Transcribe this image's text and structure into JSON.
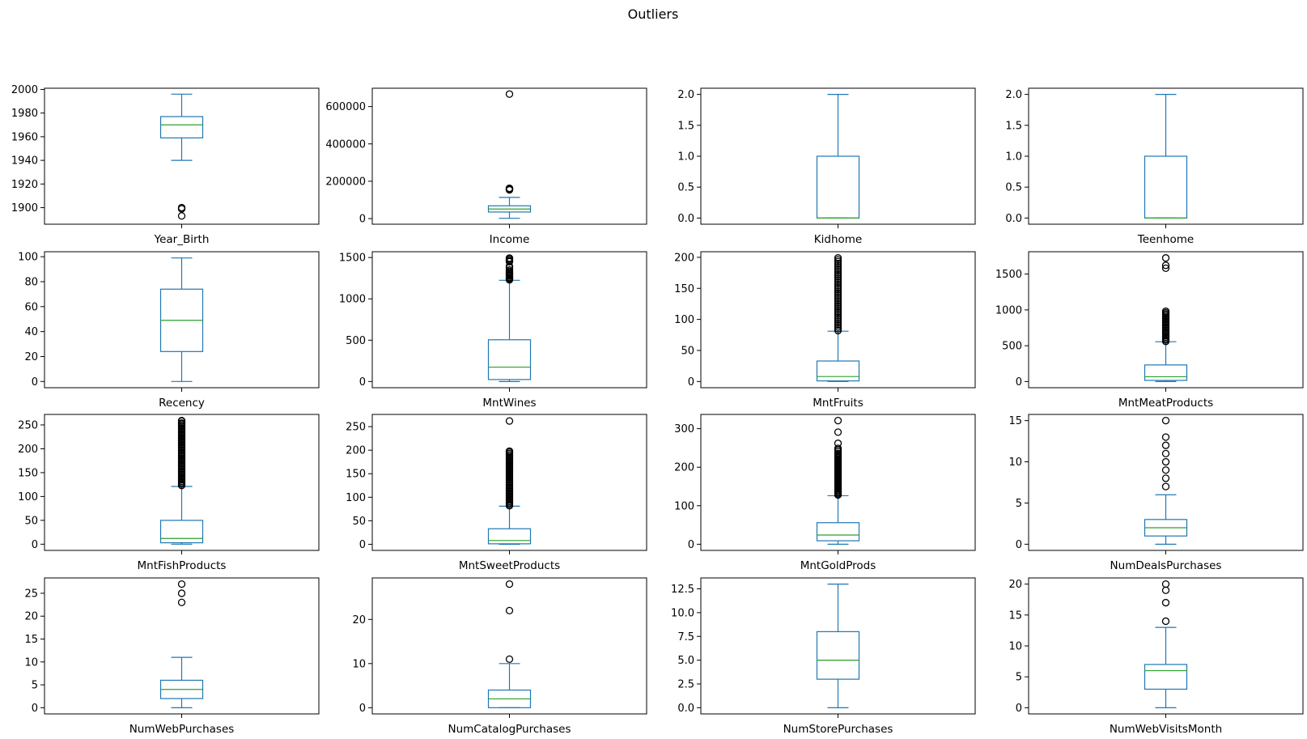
{
  "figure": {
    "title": "Outliers"
  },
  "style": {
    "box_color": "#1f77b4",
    "median_color": "#2ca02c",
    "flier_color": "#000000",
    "frame_color": "#000000"
  },
  "chart_data": [
    {
      "type": "box",
      "label": "Year_Birth",
      "ylim": [
        1886,
        2001
      ],
      "yticks": [
        1900,
        1920,
        1940,
        1960,
        1980,
        2000
      ],
      "tick_labels": [
        "1900",
        "1920",
        "1940",
        "1960",
        "1980",
        "2000"
      ],
      "whisker_low": 1940,
      "q1": 1959,
      "median": 1970,
      "q3": 1977,
      "whisker_high": 1996,
      "outliers": [
        1893,
        1899,
        1900
      ]
    },
    {
      "type": "box",
      "label": "Income",
      "ylim": [
        -30000,
        698000
      ],
      "yticks": [
        0,
        200000,
        400000,
        600000
      ],
      "tick_labels": [
        "0",
        "200000",
        "400000",
        "600000"
      ],
      "whisker_low": 1730,
      "q1": 35300,
      "median": 51400,
      "q3": 68500,
      "whisker_high": 113700,
      "outliers": [
        153900,
        156900,
        157100,
        157700,
        160800,
        162400,
        666700
      ]
    },
    {
      "type": "box",
      "label": "Kidhome",
      "ylim": [
        -0.1,
        2.1
      ],
      "yticks": [
        0.0,
        0.5,
        1.0,
        1.5,
        2.0
      ],
      "tick_labels": [
        "0.0",
        "0.5",
        "1.0",
        "1.5",
        "2.0"
      ],
      "whisker_low": 0,
      "q1": 0,
      "median": 0,
      "q3": 1,
      "whisker_high": 2,
      "outliers": []
    },
    {
      "type": "box",
      "label": "Teenhome",
      "ylim": [
        -0.1,
        2.1
      ],
      "yticks": [
        0.0,
        0.5,
        1.0,
        1.5,
        2.0
      ],
      "tick_labels": [
        "0.0",
        "0.5",
        "1.0",
        "1.5",
        "2.0"
      ],
      "whisker_low": 0,
      "q1": 0,
      "median": 0,
      "q3": 1,
      "whisker_high": 2,
      "outliers": []
    },
    {
      "type": "box",
      "label": "Recency",
      "ylim": [
        -5,
        104
      ],
      "yticks": [
        0,
        20,
        40,
        60,
        80,
        100
      ],
      "tick_labels": [
        "0",
        "20",
        "40",
        "60",
        "80",
        "100"
      ],
      "whisker_low": 0,
      "q1": 24,
      "median": 49,
      "q3": 74,
      "whisker_high": 99,
      "outliers": []
    },
    {
      "type": "box",
      "label": "MntWines",
      "ylim": [
        -75,
        1570
      ],
      "yticks": [
        0,
        500,
        1000,
        1500
      ],
      "tick_labels": [
        "0",
        "500",
        "1000",
        "1500"
      ],
      "whisker_low": 0,
      "q1": 24,
      "median": 174,
      "q3": 505,
      "whisker_high": 1224,
      "outliers": [
        1230,
        1241,
        1245,
        1252,
        1259,
        1276,
        1285,
        1296,
        1308,
        1311,
        1315,
        1332,
        1349,
        1379,
        1394,
        1449,
        1459,
        1462,
        1478,
        1492,
        1493
      ]
    },
    {
      "type": "box",
      "label": "MntFruits",
      "ylim": [
        -10,
        209
      ],
      "yticks": [
        0,
        50,
        100,
        150,
        200
      ],
      "tick_labels": [
        "0",
        "50",
        "100",
        "150",
        "200"
      ],
      "whisker_low": 0,
      "q1": 1,
      "median": 8,
      "q3": 33,
      "whisker_high": 81,
      "outliers": [
        82,
        85,
        88,
        91,
        94,
        97,
        100,
        103,
        106,
        109,
        112,
        115,
        118,
        121,
        124,
        127,
        130,
        133,
        136,
        139,
        142,
        145,
        148,
        151,
        154,
        157,
        160,
        163,
        166,
        169,
        172,
        175,
        178,
        181,
        184,
        187,
        190,
        193,
        196,
        199
      ]
    },
    {
      "type": "box",
      "label": "MntMeatProducts",
      "ylim": [
        -86,
        1812
      ],
      "yticks": [
        0,
        500,
        1000,
        1500
      ],
      "tick_labels": [
        "0",
        "500",
        "1000",
        "1500"
      ],
      "whisker_low": 0,
      "q1": 16,
      "median": 67,
      "q3": 232,
      "whisker_high": 556,
      "outliers": [
        560,
        580,
        600,
        620,
        640,
        660,
        680,
        700,
        720,
        740,
        760,
        780,
        800,
        820,
        840,
        860,
        880,
        900,
        920,
        940,
        960,
        981,
        1582,
        1622,
        1725
      ]
    },
    {
      "type": "box",
      "label": "MntFishProducts",
      "ylim": [
        -13,
        272
      ],
      "yticks": [
        0,
        50,
        100,
        150,
        200,
        250
      ],
      "tick_labels": [
        "0",
        "50",
        "100",
        "150",
        "200",
        "250"
      ],
      "whisker_low": 0,
      "q1": 3,
      "median": 12,
      "q3": 50,
      "whisker_high": 121,
      "outliers": [
        123,
        126,
        129,
        132,
        135,
        138,
        141,
        144,
        147,
        150,
        153,
        156,
        159,
        162,
        165,
        168,
        171,
        174,
        177,
        180,
        183,
        186,
        189,
        192,
        195,
        198,
        201,
        204,
        207,
        210,
        213,
        216,
        219,
        222,
        225,
        228,
        231,
        234,
        237,
        240,
        243,
        246,
        249,
        252,
        254,
        258,
        259
      ]
    },
    {
      "type": "box",
      "label": "MntSweetProducts",
      "ylim": [
        -13,
        276
      ],
      "yticks": [
        0,
        50,
        100,
        150,
        200,
        250
      ],
      "tick_labels": [
        "0",
        "50",
        "100",
        "150",
        "200",
        "250"
      ],
      "whisker_low": 0,
      "q1": 1,
      "median": 8,
      "q3": 33,
      "whisker_high": 81,
      "outliers": [
        82,
        85,
        88,
        91,
        94,
        97,
        100,
        103,
        106,
        109,
        112,
        115,
        118,
        121,
        124,
        127,
        130,
        133,
        136,
        139,
        142,
        145,
        148,
        151,
        154,
        157,
        160,
        163,
        166,
        169,
        172,
        175,
        178,
        181,
        184,
        187,
        190,
        193,
        196,
        198,
        262
      ]
    },
    {
      "type": "box",
      "label": "MntGoldProds",
      "ylim": [
        -16,
        337
      ],
      "yticks": [
        0,
        100,
        200,
        300
      ],
      "tick_labels": [
        "0",
        "100",
        "200",
        "300"
      ],
      "whisker_low": 0,
      "q1": 9,
      "median": 24,
      "q3": 56,
      "whisker_high": 126,
      "outliers": [
        128,
        131,
        134,
        137,
        140,
        143,
        146,
        149,
        152,
        155,
        158,
        161,
        164,
        167,
        170,
        173,
        176,
        179,
        182,
        185,
        188,
        191,
        194,
        197,
        200,
        203,
        206,
        209,
        212,
        215,
        218,
        221,
        224,
        227,
        230,
        233,
        236,
        241,
        245,
        249,
        262,
        291,
        321
      ]
    },
    {
      "type": "box",
      "label": "NumDealsPurchases",
      "ylim": [
        -0.75,
        15.75
      ],
      "yticks": [
        0,
        5,
        10,
        15
      ],
      "tick_labels": [
        "0",
        "5",
        "10",
        "15"
      ],
      "whisker_low": 0,
      "q1": 1,
      "median": 2,
      "q3": 3,
      "whisker_high": 6,
      "outliers": [
        7,
        8,
        9,
        10,
        11,
        12,
        13,
        15
      ]
    },
    {
      "type": "box",
      "label": "NumWebPurchases",
      "ylim": [
        -1.35,
        28.35
      ],
      "yticks": [
        0,
        5,
        10,
        15,
        20,
        25
      ],
      "tick_labels": [
        "0",
        "5",
        "10",
        "15",
        "20",
        "25"
      ],
      "whisker_low": 0,
      "q1": 2,
      "median": 4,
      "q3": 6,
      "whisker_high": 11,
      "outliers": [
        23,
        25,
        27
      ]
    },
    {
      "type": "box",
      "label": "NumCatalogPurchases",
      "ylim": [
        -1.4,
        29.4
      ],
      "yticks": [
        0,
        10,
        20
      ],
      "tick_labels": [
        "0",
        "10",
        "20"
      ],
      "whisker_low": 0,
      "q1": 0,
      "median": 2,
      "q3": 4,
      "whisker_high": 10,
      "outliers": [
        11,
        22,
        28
      ]
    },
    {
      "type": "box",
      "label": "NumStorePurchases",
      "ylim": [
        -0.65,
        13.65
      ],
      "yticks": [
        0.0,
        2.5,
        5.0,
        7.5,
        10.0,
        12.5
      ],
      "tick_labels": [
        "0.0",
        "2.5",
        "5.0",
        "7.5",
        "10.0",
        "12.5"
      ],
      "whisker_low": 0,
      "q1": 3,
      "median": 5,
      "q3": 8,
      "whisker_high": 13,
      "outliers": []
    },
    {
      "type": "box",
      "label": "NumWebVisitsMonth",
      "ylim": [
        -1,
        21
      ],
      "yticks": [
        0,
        5,
        10,
        15,
        20
      ],
      "tick_labels": [
        "0",
        "5",
        "10",
        "15",
        "20"
      ],
      "whisker_low": 0,
      "q1": 3,
      "median": 6,
      "q3": 7,
      "whisker_high": 13,
      "outliers": [
        14,
        17,
        19,
        20
      ]
    }
  ]
}
